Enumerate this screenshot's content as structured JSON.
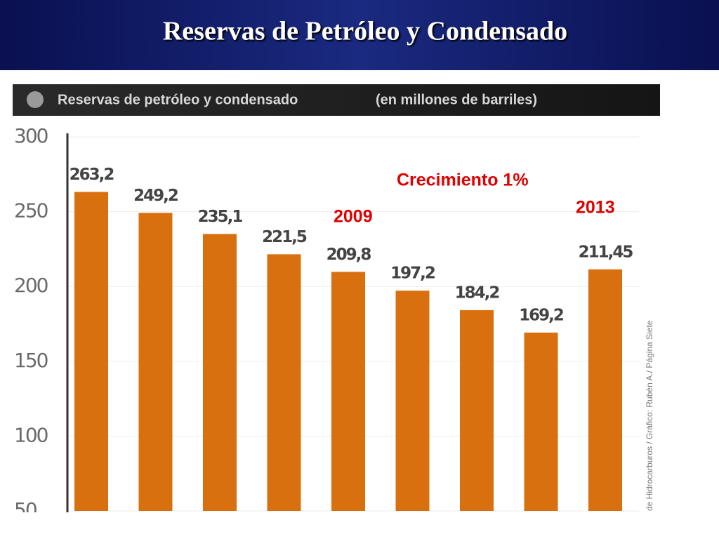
{
  "slide_title": "Reservas de Petróleo y Condensado",
  "chart_data": {
    "type": "bar",
    "title": "Reservas de petróleo y condensado",
    "subtitle": "(en millones de barriles)",
    "categories": [
      null,
      null,
      null,
      null,
      null,
      null,
      null,
      null,
      null
    ],
    "values": [
      263.2,
      249.2,
      235.1,
      221.5,
      209.8,
      197.2,
      184.2,
      169.2,
      211.45
    ],
    "value_labels": [
      "263,2",
      "249,2",
      "235,1",
      "221,5",
      "209,8",
      "197,2",
      "184,2",
      "169,2",
      "211,45"
    ],
    "color": "#d9700f",
    "ylim": [
      50,
      300
    ],
    "yticks": [
      50,
      100,
      150,
      200,
      250,
      300
    ],
    "grid": true,
    "annotations": [
      "Crecimiento 1%",
      "2009",
      "2013"
    ],
    "source": "de Hidrocarburos / Gráfico: Rubén A./ Página Siete"
  }
}
